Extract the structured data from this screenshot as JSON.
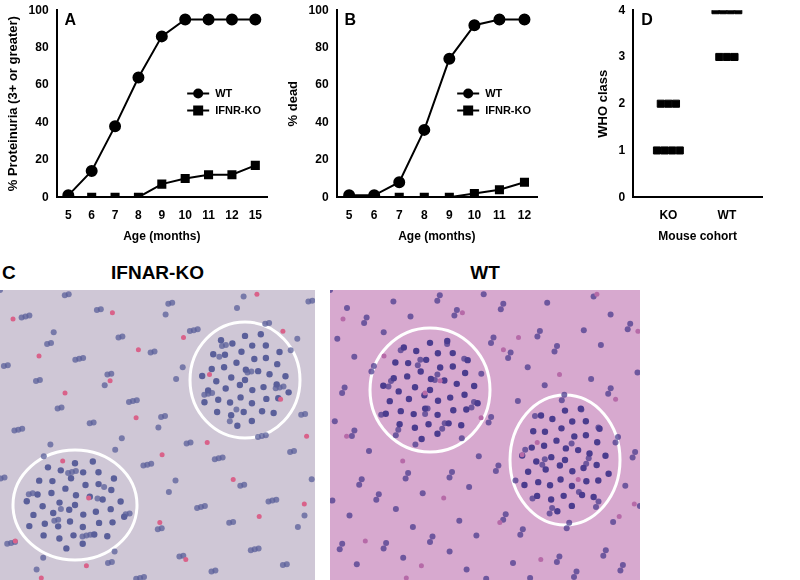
{
  "chart_data": [
    {
      "type": "line",
      "annotations": [
        "A"
      ],
      "x_label": "Age (months)",
      "y_label": "% Proteinuria (3+ or greater)",
      "categories": [
        "5",
        "6",
        "7",
        "8",
        "9",
        "10",
        "11",
        "12",
        "15"
      ],
      "series": [
        {
          "name": "WT",
          "color": "#000000",
          "marker": "circle",
          "values": [
            1,
            14,
            38,
            64,
            86,
            95,
            95,
            95,
            95
          ]
        },
        {
          "name": "IFNR-KO",
          "color": "#000000",
          "marker": "square",
          "values": [
            0,
            0,
            0,
            0,
            7,
            10,
            12,
            12,
            17
          ]
        }
      ],
      "ylim": [
        0,
        100
      ],
      "yticks": [
        0,
        20,
        40,
        60,
        80,
        100
      ],
      "grid": false,
      "legend": "right"
    },
    {
      "type": "line",
      "annotations": [
        "B"
      ],
      "x_label": "Age (months)",
      "y_label": "% dead",
      "categories": [
        "5",
        "6",
        "7",
        "8",
        "9",
        "10",
        "11",
        "12"
      ],
      "series": [
        {
          "name": "WT",
          "color": "#000000",
          "marker": "circle",
          "values": [
            1,
            1,
            8,
            36,
            74,
            92,
            95,
            95
          ]
        },
        {
          "name": "IFNR-KO",
          "color": "#000000",
          "marker": "square",
          "values": [
            0,
            0,
            0,
            0,
            0,
            2,
            4,
            8
          ]
        }
      ],
      "ylim": [
        0,
        100
      ],
      "yticks": [
        0,
        20,
        40,
        60,
        80,
        100
      ],
      "grid": false,
      "legend": "right"
    },
    {
      "type": "scatter",
      "annotations": [
        "D"
      ],
      "x_label": "Mouse cohort",
      "y_label": "WHO class",
      "categories": [
        "KO",
        "WT"
      ],
      "values": [
        [
          2,
          2,
          2,
          1,
          1,
          1,
          1
        ],
        [
          4,
          4,
          4,
          4,
          3,
          3,
          3
        ]
      ],
      "color": "#000000",
      "marker": "square",
      "ylim": [
        0,
        4
      ],
      "yticks": [
        0,
        1,
        2,
        3,
        4
      ],
      "grid": false
    }
  ],
  "image_panel": {
    "annotation": "C",
    "images": [
      {
        "title": "IFNAR-KO"
      },
      {
        "title": "WT"
      }
    ]
  }
}
